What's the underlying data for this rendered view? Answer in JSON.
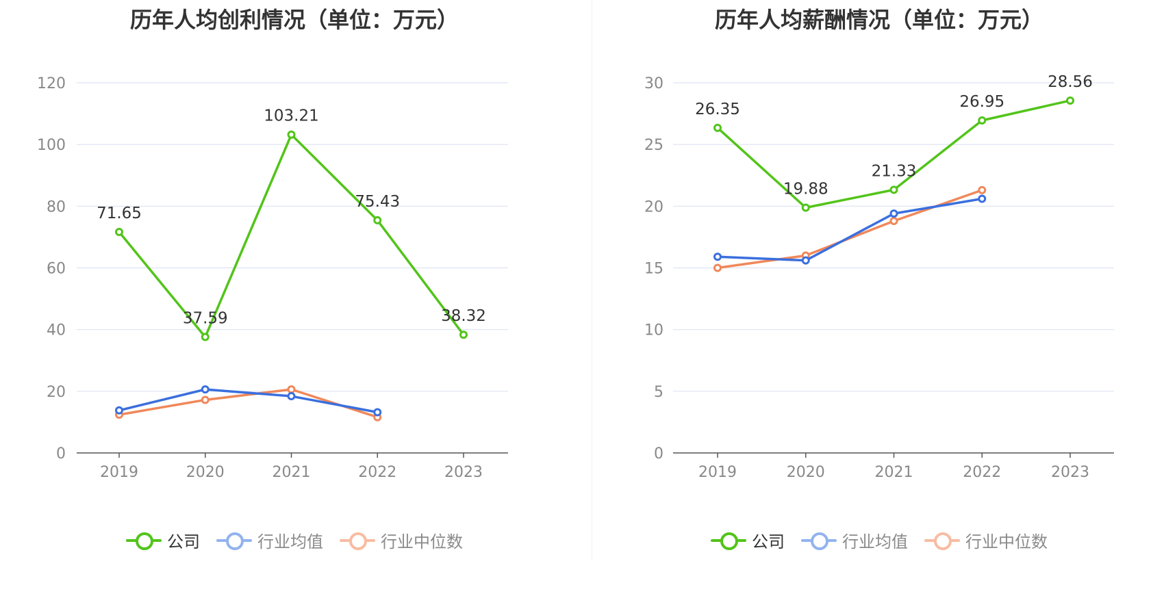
{
  "colors": {
    "company": "#52c41a",
    "avg": "#3a6fde",
    "median": "#f0885a",
    "grid": "#dde3f3",
    "axis": "#555555",
    "tick": "#888888"
  },
  "legend": {
    "company": "公司",
    "avg": "行业均值",
    "median": "行业中位数"
  },
  "chart_data": [
    {
      "type": "line",
      "title": "历年人均创利情况（单位：万元）",
      "categories": [
        "2019",
        "2020",
        "2021",
        "2022",
        "2023"
      ],
      "ylim": [
        0,
        120
      ],
      "yticks": [
        0,
        20,
        40,
        60,
        80,
        100,
        120
      ],
      "grid": true,
      "legend_position": "bottom",
      "series": [
        {
          "name": "公司",
          "key": "company",
          "values": [
            71.65,
            37.59,
            103.21,
            75.43,
            38.32
          ],
          "labels": [
            "71.65",
            "37.59",
            "103.21",
            "75.43",
            "38.32"
          ]
        },
        {
          "name": "行业均值",
          "key": "avg",
          "values": [
            13.8,
            20.6,
            18.4,
            13.2,
            null
          ]
        },
        {
          "name": "行业中位数",
          "key": "median",
          "values": [
            12.4,
            17.2,
            20.6,
            11.6,
            null
          ]
        }
      ]
    },
    {
      "type": "line",
      "title": "历年人均薪酬情况（单位：万元）",
      "categories": [
        "2019",
        "2020",
        "2021",
        "2022",
        "2023"
      ],
      "ylim": [
        0,
        30
      ],
      "yticks": [
        0,
        5,
        10,
        15,
        20,
        25,
        30
      ],
      "grid": true,
      "legend_position": "bottom",
      "series": [
        {
          "name": "公司",
          "key": "company",
          "values": [
            26.35,
            19.88,
            21.33,
            26.95,
            28.56
          ],
          "labels": [
            "26.35",
            "19.88",
            "21.33",
            "26.95",
            "28.56"
          ]
        },
        {
          "name": "行业均值",
          "key": "avg",
          "values": [
            15.9,
            15.6,
            19.4,
            20.6,
            null
          ]
        },
        {
          "name": "行业中位数",
          "key": "median",
          "values": [
            15.0,
            16.0,
            18.8,
            21.3,
            null
          ]
        }
      ]
    }
  ]
}
